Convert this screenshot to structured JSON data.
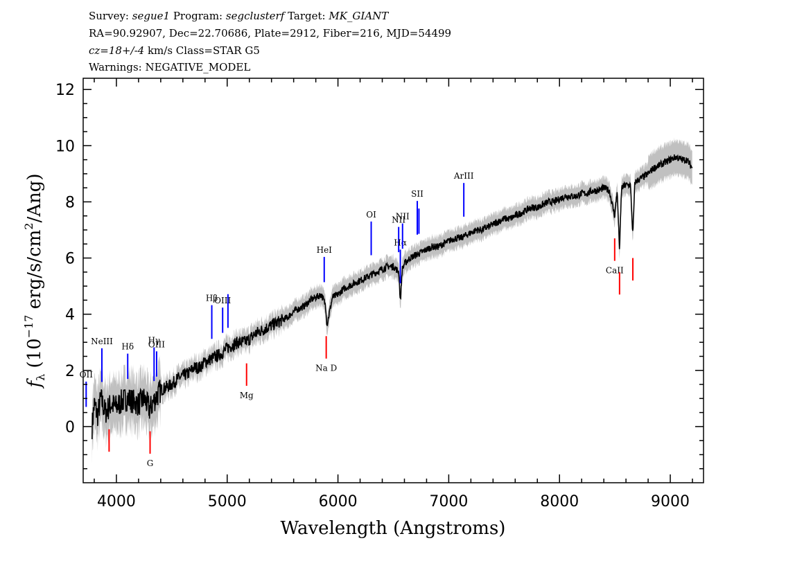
{
  "header": {
    "survey_label": "Survey:",
    "survey": "segue1",
    "program_label": "Program:",
    "program": "segclusterf",
    "target_label": "Target:",
    "target": "MK_GIANT",
    "line2": "RA=90.92907, Dec=22.70686, Plate=2912, Fiber=216, MJD=54499",
    "cz": "cz=18+/-4",
    "cz_rest": " km/s Class=STAR G5",
    "line4": "Warnings: NEGATIVE_MODEL"
  },
  "chart_data": {
    "type": "line",
    "title": "",
    "xlabel": "Wavelength (Angstroms)",
    "ylabel_prefix": "f",
    "ylabel_sub": "λ",
    "ylabel_mid": " (10",
    "ylabel_exp": "−17",
    "ylabel_unit": " erg/s/cm",
    "ylabel_exp2": "2",
    "ylabel_end": "/Ang)",
    "xlim": [
      3700,
      9300
    ],
    "ylim": [
      -2,
      12.4
    ],
    "xticks": [
      4000,
      5000,
      6000,
      7000,
      8000,
      9000
    ],
    "yticks": [
      0,
      2,
      4,
      6,
      8,
      10,
      12
    ],
    "colors": {
      "flux": "#000000",
      "error": "#c0c0c0",
      "emission": "#0000ff",
      "absorption": "#ff0000"
    },
    "series": [
      {
        "values_note_free": true,
        "x": [
          3780,
          3800,
          3830,
          3860,
          3900,
          3950,
          4000,
          4050,
          4100,
          4150,
          4200,
          4250,
          4300,
          4350,
          4400,
          4450,
          4500,
          4550,
          4600,
          4650,
          4700,
          4750,
          4800,
          4850,
          4900,
          4950,
          5000,
          5050,
          5100,
          5150,
          5200,
          5250,
          5300,
          5350,
          5400,
          5450,
          5500,
          5550,
          5600,
          5650,
          5700,
          5750,
          5800,
          5850,
          5890,
          5900,
          5950,
          6000,
          6050,
          6100,
          6150,
          6200,
          6250,
          6300,
          6350,
          6400,
          6450,
          6500,
          6550,
          6563,
          6580,
          6600,
          6650,
          6700,
          6750,
          6800,
          6850,
          6900,
          6950,
          7000,
          7050,
          7100,
          7150,
          7200,
          7250,
          7300,
          7350,
          7400,
          7450,
          7500,
          7550,
          7600,
          7650,
          7700,
          7750,
          7800,
          7850,
          7900,
          7950,
          8000,
          8050,
          8100,
          8150,
          8200,
          8250,
          8300,
          8350,
          8400,
          8450,
          8498,
          8520,
          8542,
          8560,
          8600,
          8640,
          8662,
          8680,
          8720,
          8760,
          8800,
          8850,
          8900,
          8950,
          9000,
          9050,
          9100,
          9150,
          9200
        ],
        "y": [
          0.0,
          0.8,
          0.4,
          1.0,
          0.5,
          0.8,
          0.7,
          0.9,
          1.0,
          0.9,
          0.8,
          1.0,
          0.6,
          1.0,
          1.3,
          1.4,
          1.5,
          1.7,
          1.8,
          1.9,
          2.1,
          2.1,
          2.3,
          2.4,
          2.5,
          2.6,
          2.8,
          2.9,
          3.0,
          3.0,
          3.1,
          3.3,
          3.4,
          3.5,
          3.6,
          3.7,
          3.8,
          3.9,
          4.1,
          4.2,
          4.3,
          4.5,
          4.6,
          4.7,
          4.3,
          3.6,
          4.6,
          4.7,
          4.9,
          5.0,
          5.1,
          5.2,
          5.3,
          5.4,
          5.5,
          5.6,
          5.7,
          5.7,
          5.5,
          4.4,
          5.6,
          5.8,
          6.0,
          6.1,
          6.2,
          6.3,
          6.4,
          6.4,
          6.5,
          6.6,
          6.7,
          6.7,
          6.8,
          6.9,
          7.0,
          7.0,
          7.1,
          7.2,
          7.3,
          7.4,
          7.4,
          7.5,
          7.6,
          7.7,
          7.8,
          7.8,
          7.9,
          8.0,
          8.0,
          8.1,
          8.2,
          8.2,
          8.2,
          8.3,
          8.3,
          8.4,
          8.4,
          8.5,
          8.4,
          7.5,
          8.4,
          6.3,
          8.5,
          8.6,
          8.6,
          6.8,
          8.7,
          8.8,
          8.9,
          9.0,
          9.2,
          9.3,
          9.4,
          9.5,
          9.6,
          9.5,
          9.5,
          9.2
        ]
      }
    ],
    "lines_emission": [
      {
        "label": "OII",
        "x": 3727
      },
      {
        "label": "NeIII",
        "x": 3869
      },
      {
        "label": "Hδ",
        "x": 4102
      },
      {
        "label": "Hγ",
        "x": 4340
      },
      {
        "label": "OIII",
        "x": 4363
      },
      {
        "label": "Hβ",
        "x": 4861
      },
      {
        "label": "OIII",
        "x": 4959
      },
      {
        "label": "",
        "x": 5007
      },
      {
        "label": "HeI",
        "x": 5876
      },
      {
        "label": "OI",
        "x": 6300
      },
      {
        "label": "NII",
        "x": 6548
      },
      {
        "label": "Hα",
        "x": 6563
      },
      {
        "label": "NII",
        "x": 6583
      },
      {
        "label": "SII",
        "x": 6716
      },
      {
        "label": "",
        "x": 6731
      },
      {
        "label": "ArIII",
        "x": 7136
      }
    ],
    "lines_absorption": [
      {
        "label": "",
        "x": 3934
      },
      {
        "label": "G",
        "x": 4304
      },
      {
        "label": "Mg",
        "x": 5175
      },
      {
        "label": "Na D",
        "x": 5894
      },
      {
        "label": "CaII",
        "x": 8498
      },
      {
        "label": "",
        "x": 8542
      },
      {
        "label": "",
        "x": 8662
      }
    ]
  }
}
